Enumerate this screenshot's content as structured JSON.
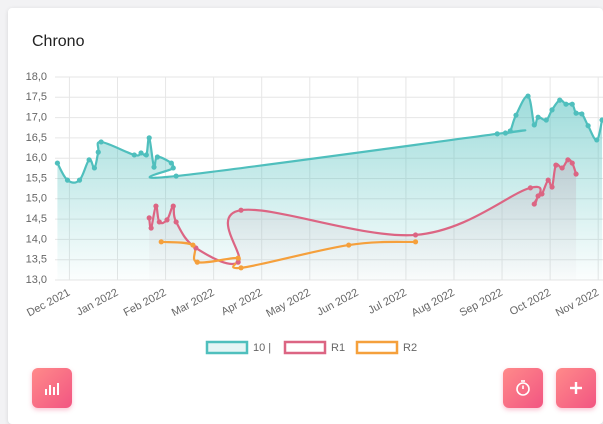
{
  "chart_data": {
    "type": "line",
    "title": "Chrono",
    "xlim": [
      -0.3,
      11.1
    ],
    "xticks": [
      {
        "value": 0,
        "label": "Dec 2021"
      },
      {
        "value": 1,
        "label": "Jan 2022"
      },
      {
        "value": 2,
        "label": "Feb 2022"
      },
      {
        "value": 3,
        "label": "Mar 2022"
      },
      {
        "value": 4,
        "label": "Apr 2022"
      },
      {
        "value": 5,
        "label": "May 2022"
      },
      {
        "value": 6,
        "label": "Jun 2022"
      },
      {
        "value": 7,
        "label": "Jul 2022"
      },
      {
        "value": 8,
        "label": "Aug 2022"
      },
      {
        "value": 9,
        "label": "Sep 2022"
      },
      {
        "value": 10,
        "label": "Oct 2022"
      },
      {
        "value": 11,
        "label": "Nov 2022"
      }
    ],
    "ylim": [
      13,
      18
    ],
    "yticks": [
      {
        "value": 13,
        "label": "13,0"
      },
      {
        "value": 13.5,
        "label": "13,5"
      },
      {
        "value": 14,
        "label": "14,0"
      },
      {
        "value": 14.5,
        "label": "14,5"
      },
      {
        "value": 15,
        "label": "15,0"
      },
      {
        "value": 15.5,
        "label": "15,5"
      },
      {
        "value": 16,
        "label": "16,0"
      },
      {
        "value": 16.5,
        "label": "16,5"
      },
      {
        "value": 17,
        "label": "17,0"
      },
      {
        "value": 17.5,
        "label": "17,5"
      },
      {
        "value": 18,
        "label": "18,0"
      }
    ],
    "grid": true,
    "legend": "bottom",
    "series": [
      {
        "name": "10 |",
        "color": "#4fbfbd",
        "fill": true,
        "x": [
          -0.25,
          -0.04,
          0.21,
          0.41,
          0.52,
          0.6,
          0.66,
          1.35,
          1.49,
          1.6,
          1.66,
          1.76,
          1.83,
          2.12,
          2.16,
          2.22,
          8.9,
          9.07,
          9.17,
          9.29,
          9.54,
          9.67,
          9.75,
          9.92,
          10.04,
          10.2,
          10.33,
          10.46,
          10.54,
          10.66,
          10.79,
          10.97,
          11.08
        ],
        "values": [
          15.88,
          15.46,
          15.46,
          15.96,
          15.76,
          16.15,
          16.4,
          16.08,
          16.13,
          16.08,
          16.5,
          15.78,
          16.03,
          15.88,
          15.76,
          15.56,
          16.6,
          16.62,
          16.67,
          17.06,
          17.53,
          16.82,
          17.01,
          16.94,
          17.19,
          17.43,
          17.33,
          17.33,
          17.11,
          17.09,
          16.8,
          16.45,
          16.94
        ]
      },
      {
        "name": "R1",
        "color": "#dc6583",
        "fill": true,
        "x": [
          1.66,
          1.7,
          1.8,
          1.87,
          2.03,
          2.16,
          2.22,
          2.63,
          3.51,
          3.57,
          7.2,
          9.59,
          9.67,
          9.75,
          9.83,
          9.96,
          10.04,
          10.12,
          10.25,
          10.37,
          10.46,
          10.54
        ],
        "values": [
          14.53,
          14.28,
          14.82,
          14.43,
          14.48,
          14.82,
          14.43,
          13.79,
          13.44,
          14.72,
          14.11,
          15.27,
          14.87,
          15.07,
          15.12,
          15.46,
          15.29,
          15.83,
          15.76,
          15.96,
          15.88,
          15.61
        ]
      },
      {
        "name": "R2",
        "color": "#f5a03c",
        "fill": false,
        "x": [
          1.91,
          2.57,
          2.66,
          3.51,
          3.57,
          5.81,
          7.2
        ],
        "values": [
          13.94,
          13.86,
          13.44,
          13.54,
          13.3,
          13.86,
          13.94
        ]
      }
    ]
  }
}
